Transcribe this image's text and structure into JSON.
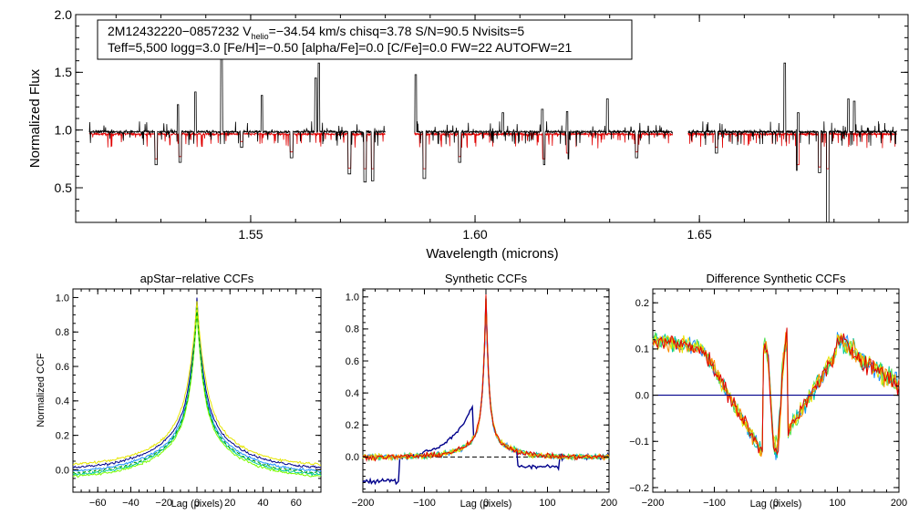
{
  "colors": {
    "observed": "#000000",
    "model": "#e00000",
    "zero_line": "#00008b",
    "dashed": "#000000"
  },
  "info_box": {
    "line1_prefix": "2M12432220−0857232  V",
    "line1_sub": "helio",
    "line1_suffix": "=−34.54 km/s  chisq=3.78  S/N=90.5  Nvisits=5",
    "line2": "Teff=5,500 logg=3.0 [Fe/H]=−0.50 [alpha/Fe]=0.0 [C/Fe]=0.0 FW=22 AUTOFW=21"
  },
  "chart_data": [
    {
      "type": "line",
      "id": "spectrum",
      "title": "",
      "xlabel": "Wavelength (microns)",
      "ylabel": "Normalized Flux",
      "xlim": [
        1.511,
        1.6965
      ],
      "ylim": [
        0.2,
        2.0
      ],
      "xticks": [
        {
          "v": 1.55,
          "l": "1.55"
        },
        {
          "v": 1.6,
          "l": "1.60"
        },
        {
          "v": 1.65,
          "l": "1.65"
        }
      ],
      "yticks": [
        {
          "v": 0.5,
          "l": "0.5"
        },
        {
          "v": 1.0,
          "l": "1.0"
        },
        {
          "v": 1.5,
          "l": "1.5"
        },
        {
          "v": 2.0,
          "l": "2.0"
        }
      ],
      "chips": [
        [
          1.514,
          1.58
        ],
        [
          1.5865,
          1.644
        ],
        [
          1.6475,
          1.694
        ]
      ],
      "series": [
        {
          "name": "observed",
          "color": "#000000",
          "level": 0.985
        },
        {
          "name": "model",
          "color": "#e00000",
          "level": 0.965
        }
      ],
      "emission_spikes": [
        {
          "x": 1.5435,
          "y": 1.62
        },
        {
          "x": 1.5525,
          "y": 1.3
        },
        {
          "x": 1.5652,
          "y": 1.58
        },
        {
          "x": 1.5645,
          "y": 1.45
        },
        {
          "x": 1.5377,
          "y": 1.33
        },
        {
          "x": 1.5338,
          "y": 1.22
        },
        {
          "x": 1.5868,
          "y": 1.48
        },
        {
          "x": 1.6062,
          "y": 1.15
        },
        {
          "x": 1.615,
          "y": 1.18
        },
        {
          "x": 1.6205,
          "y": 1.16
        },
        {
          "x": 1.6295,
          "y": 1.27
        },
        {
          "x": 1.669,
          "y": 1.58
        },
        {
          "x": 1.6832,
          "y": 1.27
        },
        {
          "x": 1.6845,
          "y": 1.25
        },
        {
          "x": 1.672,
          "y": 1.15
        }
      ],
      "absorption_lines": [
        {
          "x": 1.5289,
          "y": 0.7
        },
        {
          "x": 1.5343,
          "y": 0.72
        },
        {
          "x": 1.5591,
          "y": 0.76
        },
        {
          "x": 1.572,
          "y": 0.62
        },
        {
          "x": 1.5755,
          "y": 0.55
        },
        {
          "x": 1.5772,
          "y": 0.56
        },
        {
          "x": 1.5887,
          "y": 0.58
        },
        {
          "x": 1.5966,
          "y": 0.72
        },
        {
          "x": 1.6153,
          "y": 0.7
        },
        {
          "x": 1.6206,
          "y": 0.75
        },
        {
          "x": 1.636,
          "y": 0.76
        },
        {
          "x": 1.6719,
          "y": 0.65
        },
        {
          "x": 1.6768,
          "y": 0.63
        },
        {
          "x": 1.6786,
          "y": 0.2
        },
        {
          "x": 1.6538,
          "y": 0.8
        },
        {
          "x": 1.548,
          "y": 0.85
        }
      ]
    },
    {
      "type": "line",
      "id": "apstar_ccf",
      "title": "apStar−relative CCFs",
      "xlabel": "Lag (pixels)",
      "ylabel": "Normalized CCF",
      "xlim": [
        -75,
        75
      ],
      "ylim": [
        -0.13,
        1.05
      ],
      "xticks": [
        {
          "v": -60,
          "l": "−60"
        },
        {
          "v": -40,
          "l": "−40"
        },
        {
          "v": -20,
          "l": "−20"
        },
        {
          "v": 0,
          "l": "0"
        },
        {
          "v": 20,
          "l": "20"
        },
        {
          "v": 40,
          "l": "40"
        },
        {
          "v": 60,
          "l": "60"
        }
      ],
      "yticks": [
        {
          "v": 0,
          "l": "0.0"
        },
        {
          "v": 0.2,
          "l": "0.2"
        },
        {
          "v": 0.4,
          "l": "0.4"
        },
        {
          "v": 0.6,
          "l": "0.6"
        },
        {
          "v": 0.8,
          "l": "0.8"
        },
        {
          "v": 1.0,
          "l": "1.0"
        }
      ],
      "series": [
        {
          "name": "visit 1",
          "color": "#00008b",
          "peak": 1.0,
          "width": 4,
          "base": 0.0
        },
        {
          "name": "visit 2",
          "color": "#1e90ff",
          "peak": 0.98,
          "width": 4,
          "base": -0.02
        },
        {
          "name": "visit 3",
          "color": "#00c8a0",
          "peak": 0.99,
          "width": 4,
          "base": -0.04
        },
        {
          "name": "visit 4",
          "color": "#7cfc00",
          "peak": 0.97,
          "width": 4,
          "base": -0.05
        },
        {
          "name": "visit 5",
          "color": "#e6e600",
          "peak": 0.96,
          "width": 5,
          "base": 0.02
        },
        {
          "name": "template",
          "color": "#00a000",
          "peak": 0.97,
          "width": 4,
          "base": -0.03,
          "dashed": true
        }
      ]
    },
    {
      "type": "line",
      "id": "synthetic_ccf",
      "title": "Synthetic CCFs",
      "xlabel": "Lag (pixels)",
      "ylabel": "",
      "xlim": [
        -200,
        200
      ],
      "ylim": [
        -0.22,
        1.05
      ],
      "xticks": [
        {
          "v": -200,
          "l": "−200"
        },
        {
          "v": -100,
          "l": "−100"
        },
        {
          "v": 0,
          "l": "0"
        },
        {
          "v": 100,
          "l": "100"
        },
        {
          "v": 200,
          "l": "200"
        }
      ],
      "yticks": [
        {
          "v": 0,
          "l": "0.0"
        },
        {
          "v": 0.2,
          "l": "0.2"
        },
        {
          "v": 0.4,
          "l": "0.4"
        },
        {
          "v": 0.6,
          "l": "0.6"
        },
        {
          "v": 0.8,
          "l": "0.8"
        },
        {
          "v": 1.0,
          "l": "1.0"
        }
      ],
      "series": [
        {
          "name": "dark blue",
          "color": "#00008b"
        },
        {
          "name": "blue",
          "color": "#1e90ff"
        },
        {
          "name": "teal",
          "color": "#00c8a0"
        },
        {
          "name": "green",
          "color": "#50e050"
        },
        {
          "name": "yellow",
          "color": "#e6e600"
        },
        {
          "name": "orange",
          "color": "#ff8c00"
        },
        {
          "name": "red",
          "color": "#e00000"
        }
      ]
    },
    {
      "type": "line",
      "id": "difference_ccf",
      "title": "Difference Synthetic CCFs",
      "xlabel": "Lag (pixels)",
      "ylabel": "",
      "xlim": [
        -200,
        200
      ],
      "ylim": [
        -0.21,
        0.23
      ],
      "xticks": [
        {
          "v": -200,
          "l": "−200"
        },
        {
          "v": -100,
          "l": "−100"
        },
        {
          "v": 0,
          "l": "0"
        },
        {
          "v": 100,
          "l": "100"
        },
        {
          "v": 200,
          "l": "200"
        }
      ],
      "yticks": [
        {
          "v": -0.2,
          "l": "−0.2"
        },
        {
          "v": -0.1,
          "l": "−0.1"
        },
        {
          "v": 0,
          "l": "0.0"
        },
        {
          "v": 0.1,
          "l": "0.1"
        },
        {
          "v": 0.2,
          "l": "0.2"
        }
      ],
      "series": [
        {
          "name": "blue",
          "color": "#1e90ff"
        },
        {
          "name": "teal",
          "color": "#00c8a0"
        },
        {
          "name": "green",
          "color": "#50e050"
        },
        {
          "name": "yellow",
          "color": "#e6e600"
        },
        {
          "name": "orange",
          "color": "#ff8c00"
        },
        {
          "name": "red",
          "color": "#e00000"
        },
        {
          "name": "zero",
          "color": "#00008b",
          "flat": true
        }
      ]
    }
  ]
}
